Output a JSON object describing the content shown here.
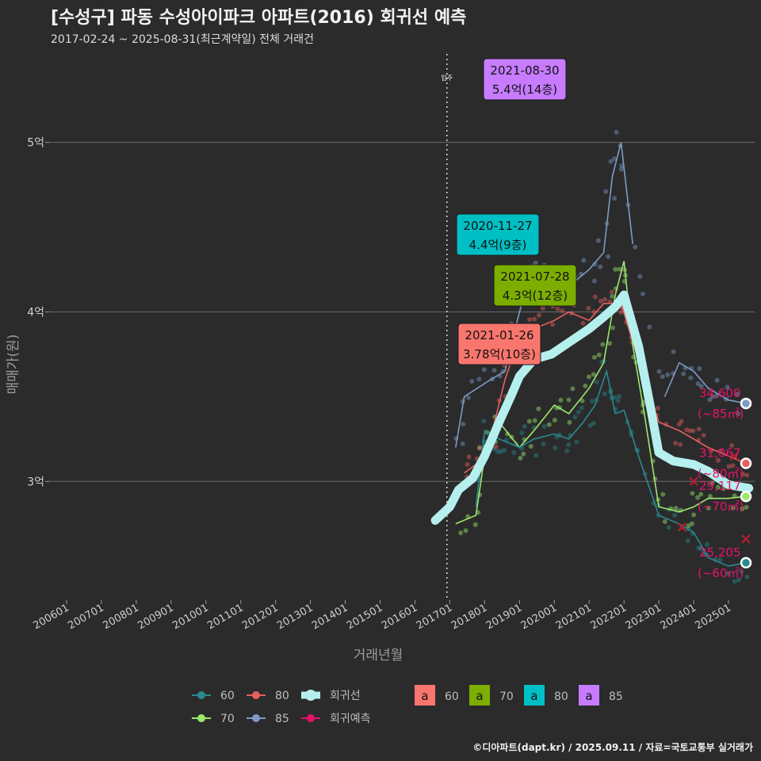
{
  "header": {
    "title": "[수성구] 파동 수성아이파크 아파트(2016) 회귀선 예측",
    "subtitle": "2017-02-24 ~ 2025-08-31(최근계약일) 전체 거래건"
  },
  "footer": {
    "credit": "©디아파트(dapt.kr) / 2025.09.11 / 자료=국토교통부 실거래가"
  },
  "colors": {
    "background": "#2b2b2c",
    "grid": "#6a6a6a",
    "s60": "#2a8a8f",
    "s70": "#9be86a",
    "s80": "#e8605e",
    "s85": "#7d9bc4",
    "regression": "#b5f0ee",
    "forecast": "#e8126a",
    "callout60": "#f8766d",
    "callout70": "#7cae00",
    "callout80": "#00bfc4",
    "callout85": "#c77cff"
  },
  "chart_data": {
    "type": "line",
    "title": "[수성구] 파동 수성아이파크 아파트(2016) 회귀선 예측",
    "subtitle": "2017-02-24 ~ 2025-08-31(최근계약일) 전체 거래건",
    "xlabel": "거래년월",
    "ylabel": "매매가(원)",
    "x_ticks": [
      "200601",
      "200701",
      "200801",
      "200901",
      "201001",
      "201101",
      "201201",
      "201301",
      "201401",
      "201501",
      "201601",
      "201701",
      "201801",
      "201901",
      "202001",
      "202101",
      "202201",
      "202301",
      "202401",
      "202501"
    ],
    "x_range": [
      "2005-07",
      "2025-10"
    ],
    "y_ticks": [
      {
        "value": 30000,
        "label": "3억"
      },
      {
        "value": 40000,
        "label": "4억"
      },
      {
        "value": 50000,
        "label": "5억"
      }
    ],
    "ylim": [
      23000,
      55500
    ],
    "grid": "horizontal",
    "move_in": {
      "x": "2016-12",
      "label": "입주"
    },
    "legend_position": "bottom",
    "legend_lines": [
      {
        "key": "s60",
        "label": "60"
      },
      {
        "key": "s80",
        "label": "80"
      },
      {
        "key": "regression",
        "label": "회귀선"
      },
      {
        "key": "s70",
        "label": "70"
      },
      {
        "key": "s85",
        "label": "85"
      },
      {
        "key": "forecast",
        "label": "회귀예측"
      }
    ],
    "legend_boxes": [
      {
        "key": "callout60",
        "label": "60"
      },
      {
        "key": "callout70",
        "label": "70"
      },
      {
        "key": "callout80",
        "label": "80"
      },
      {
        "key": "callout85",
        "label": "85"
      }
    ],
    "callouts": [
      {
        "key": "callout85",
        "date": "2021-08-30",
        "price": "5.4억(14층)",
        "x": "2021-08",
        "y": 54000
      },
      {
        "key": "callout80",
        "date": "2020-11-27",
        "price": "4.4억(9층)",
        "x": "2020-11",
        "y": 44000
      },
      {
        "key": "callout70",
        "date": "2021-07-28",
        "price": "4.3억(12층)",
        "x": "2021-07",
        "y": 43000
      },
      {
        "key": "callout60",
        "date": "2021-01-26",
        "price": "3.78억(10층)",
        "x": "2021-01",
        "y": 37800
      }
    ],
    "end_labels": [
      {
        "key": "s85",
        "value": "34,600",
        "area": "(~85㎡)",
        "y": 34600
      },
      {
        "key": "s80",
        "value": "31,067",
        "area": "(~80㎡)",
        "y": 31067
      },
      {
        "key": "s70",
        "value": "29,117",
        "area": "(~70㎡)",
        "y": 29117
      },
      {
        "key": "s60",
        "value": "25,205",
        "area": "(~60㎡)",
        "y": 25205
      }
    ],
    "series": [
      {
        "key": "s60",
        "name": "60",
        "points": [
          [
            "2017-10",
            28500
          ],
          [
            "2018-01",
            33000
          ],
          [
            "2018-06",
            32500
          ],
          [
            "2019-01",
            32000
          ],
          [
            "2019-06",
            32500
          ],
          [
            "2020-01",
            32800
          ],
          [
            "2020-06",
            32500
          ],
          [
            "2020-11",
            33500
          ],
          [
            "2021-03",
            34500
          ],
          [
            "2021-07",
            36500
          ],
          [
            "2021-10",
            34000
          ],
          [
            "2022-01",
            34200
          ],
          [
            "2022-06",
            31500
          ],
          [
            "2023-01",
            28000
          ],
          [
            "2023-08",
            27500
          ],
          [
            "2024-01",
            27000
          ],
          [
            "2024-06",
            25500
          ],
          [
            "2025-01",
            25000
          ],
          [
            "2025-07",
            25205
          ]
        ]
      },
      {
        "key": "s70",
        "name": "70",
        "points": [
          [
            "2017-03",
            27500
          ],
          [
            "2017-10",
            28000
          ],
          [
            "2018-01",
            31500
          ],
          [
            "2018-06",
            33500
          ],
          [
            "2019-01",
            32000
          ],
          [
            "2019-06",
            33000
          ],
          [
            "2020-01",
            34500
          ],
          [
            "2020-06",
            34000
          ],
          [
            "2021-01",
            35500
          ],
          [
            "2021-06",
            37000
          ],
          [
            "2021-10",
            41000
          ],
          [
            "2022-01",
            43000
          ],
          [
            "2022-04",
            38000
          ],
          [
            "2022-08",
            34000
          ],
          [
            "2023-01",
            28500
          ],
          [
            "2023-08",
            28200
          ],
          [
            "2024-01",
            28500
          ],
          [
            "2024-06",
            29000
          ],
          [
            "2025-01",
            29000
          ],
          [
            "2025-07",
            29117
          ]
        ]
      },
      {
        "key": "s80",
        "name": "80",
        "points": [
          [
            "2017-06",
            30500
          ],
          [
            "2017-10",
            31000
          ],
          [
            "2018-03",
            32500
          ],
          [
            "2018-08",
            36000
          ],
          [
            "2019-01",
            38500
          ],
          [
            "2019-06",
            39000
          ],
          [
            "2020-01",
            39500
          ],
          [
            "2020-06",
            40000
          ],
          [
            "2021-01",
            39500
          ],
          [
            "2021-06",
            40500
          ],
          [
            "2021-12",
            40500
          ],
          [
            "2022-03",
            38800
          ],
          [
            "2022-08",
            36000
          ],
          [
            "2023-01",
            33500
          ],
          [
            "2023-08",
            33000
          ],
          [
            "2024-01",
            32500
          ],
          [
            "2024-06",
            32000
          ],
          [
            "2025-01",
            31500
          ],
          [
            "2025-07",
            31067
          ]
        ]
      },
      {
        "key": "s85",
        "name": "85",
        "points": [
          [
            "2017-03",
            32000
          ],
          [
            "2017-06",
            35000
          ],
          [
            "2018-03",
            36000
          ],
          [
            "2018-08",
            36500
          ],
          [
            "2019-01",
            40000
          ],
          [
            "2019-06",
            42800
          ],
          [
            "2020-01",
            41800
          ],
          [
            "2020-06",
            41500
          ],
          [
            "2021-01",
            42500
          ],
          [
            "2021-06",
            43500
          ],
          [
            "2021-09",
            48000
          ],
          [
            "2021-12",
            50000
          ],
          [
            "2022-04",
            44000
          ],
          [
            "2022-10",
            null
          ],
          [
            "2023-03",
            35000
          ],
          [
            "2023-08",
            37000
          ],
          [
            "2024-01",
            36500
          ],
          [
            "2024-06",
            35500
          ],
          [
            "2025-01",
            34800
          ],
          [
            "2025-07",
            34600
          ]
        ]
      },
      {
        "key": "regression",
        "name": "회귀선",
        "points": [
          [
            "2016-08",
            27700
          ],
          [
            "2017-01",
            28500
          ],
          [
            "2017-04",
            29500
          ],
          [
            "2017-09",
            30200
          ],
          [
            "2018-01",
            31500
          ],
          [
            "2018-06",
            33500
          ],
          [
            "2018-10",
            35000
          ],
          [
            "2019-01",
            36200
          ],
          [
            "2019-06",
            37200
          ],
          [
            "2019-12",
            37500
          ],
          [
            "2020-06",
            38200
          ],
          [
            "2021-01",
            39000
          ],
          [
            "2021-06",
            39700
          ],
          [
            "2021-10",
            40300
          ],
          [
            "2022-01",
            41000
          ],
          [
            "2022-06",
            38000
          ],
          [
            "2022-10",
            34500
          ],
          [
            "2023-01",
            31700
          ],
          [
            "2023-06",
            31200
          ],
          [
            "2024-01",
            31000
          ],
          [
            "2024-06",
            30600
          ],
          [
            "2025-01",
            29800
          ],
          [
            "2025-08",
            29600
          ]
        ]
      },
      {
        "key": "forecast",
        "name": "회귀예측",
        "points": [
          [
            "2024-01",
            30000
          ],
          [
            "2023-09",
            27300
          ],
          [
            "2025-07",
            26600
          ],
          [
            "2025-03",
            31500
          ]
        ]
      }
    ]
  }
}
